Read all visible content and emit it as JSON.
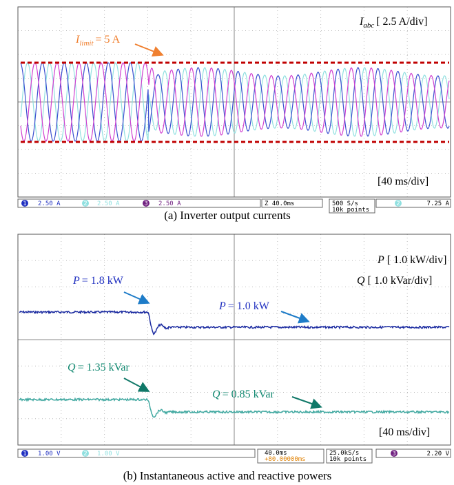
{
  "panel_a": {
    "limit_label": {
      "symbol": "I",
      "subscript": "limit",
      "rest": "= 5 A"
    },
    "scale_label": {
      "symbol": "I",
      "subscript": "abc",
      "rest": "[ 2.5 A/div]"
    },
    "time_label": "[40 ms/div]",
    "status": {
      "ch1": "1",
      "ch1_scale": "2.50 A",
      "ch2": "2",
      "ch2_scale": "2.50 A",
      "ch3": "3",
      "ch3_scale": "2.50 A",
      "timebase": "Z 40.0ms",
      "rate": "500 S/s",
      "points": "10k points",
      "trig_ch": "2",
      "trig_level": "7.25 A"
    },
    "caption": "(a) Inverter output currents"
  },
  "panel_b": {
    "p_scale": {
      "symbol": "P",
      "rest": "[ 1.0 kW/div]"
    },
    "q_scale": {
      "symbol": "Q",
      "rest": "[ 1.0 kVar/div]"
    },
    "p_before": {
      "symbol": "P",
      "rest": "= 1.8 kW"
    },
    "p_after": {
      "symbol": "P",
      "rest": "= 1.0 kW"
    },
    "q_before": {
      "symbol": "Q",
      "rest": "= 1.35 kVar"
    },
    "q_after": {
      "symbol": "Q",
      "rest": "= 0.85 kVar"
    },
    "time_label": "[40 ms/div]",
    "status": {
      "ch1": "1",
      "ch1_scale": "1.00 V",
      "ch2": "2",
      "ch2_scale": "1.00 V",
      "timebase": "40.0ms",
      "offset": "+80.00000ms",
      "rate": "25.0kS/s",
      "points": "10k points",
      "trig_ch": "3",
      "trig_level": "2.20 V"
    },
    "caption": "(b) Instantaneous active and reactive powers"
  }
}
